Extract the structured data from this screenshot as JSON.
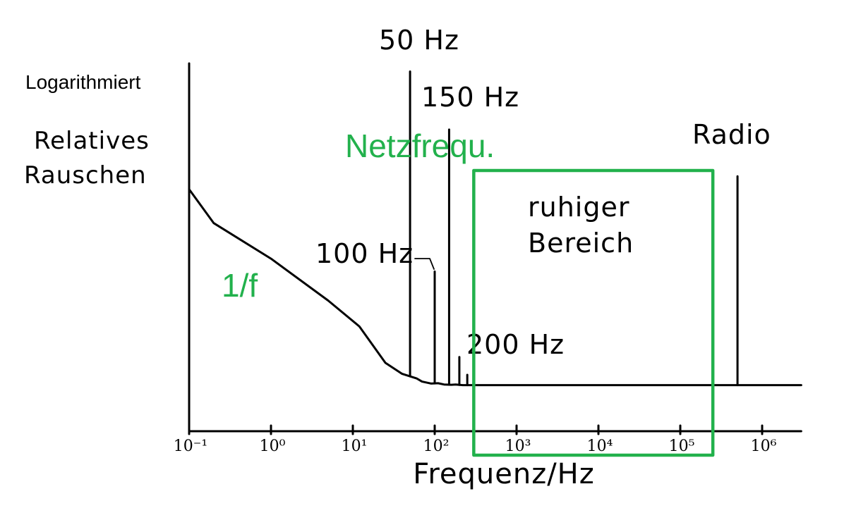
{
  "colors": {
    "ink": "#000000",
    "accent": "#22b14c",
    "background": "#ffffff"
  },
  "chart_data": {
    "type": "line",
    "title": "",
    "xlabel": "Frequenz/Hz",
    "ylabel": {
      "scale_note": "Logarithmiert",
      "lines": [
        "Relatives",
        "Rauschen"
      ]
    },
    "x_axis": {
      "scale": "log",
      "range": [
        0.1,
        3000000
      ],
      "ticks": [
        {
          "value": 0.1,
          "label": "10⁻¹"
        },
        {
          "value": 1,
          "label": "10⁰"
        },
        {
          "value": 10,
          "label": "10¹"
        },
        {
          "value": 100,
          "label": "10²"
        },
        {
          "value": 1000,
          "label": "10³"
        },
        {
          "value": 10000,
          "label": "10⁴"
        },
        {
          "value": 100000,
          "label": "10⁵"
        },
        {
          "value": 1000000,
          "label": "10⁶"
        }
      ]
    },
    "y_axis": {
      "scale": "log",
      "range": [
        0,
        10
      ],
      "ticks": []
    },
    "baseline": {
      "name": "",
      "points": [
        {
          "x": 0.1,
          "y": 6.1
        },
        {
          "x": 0.2,
          "y": 5.05
        },
        {
          "x": 1,
          "y": 3.95
        },
        {
          "x": 5,
          "y": 2.65
        },
        {
          "x": 12,
          "y": 1.85
        },
        {
          "x": 25,
          "y": 0.72
        },
        {
          "x": 40,
          "y": 0.38
        },
        {
          "x": 60,
          "y": 0.24
        },
        {
          "x": 70,
          "y": 0.14
        },
        {
          "x": 90,
          "y": 0.08
        },
        {
          "x": 110,
          "y": 0.09
        },
        {
          "x": 130,
          "y": 0.05
        },
        {
          "x": 160,
          "y": 0.04
        },
        {
          "x": 180,
          "y": 0.05
        },
        {
          "x": 220,
          "y": 0.03
        },
        {
          "x": 1000,
          "y": 0.03
        },
        {
          "x": 10000,
          "y": 0.03
        },
        {
          "x": 100000,
          "y": 0.03
        },
        {
          "x": 3000000,
          "y": 0.03
        }
      ]
    },
    "spikes": [
      {
        "x": 50,
        "y": 9.75,
        "label": "50 Hz"
      },
      {
        "x": 100,
        "y": 3.55,
        "label": "100 Hz"
      },
      {
        "x": 150,
        "y": 7.95,
        "label": "150 Hz"
      },
      {
        "x": 200,
        "y": 0.9,
        "label": "200 Hz"
      },
      {
        "x": 250,
        "y": 0.35,
        "label": ""
      },
      {
        "x": 500000,
        "y": 6.5,
        "label": "Radio"
      }
    ],
    "annotations": [
      {
        "text": "ruhiger",
        "region_from": 300,
        "region_to": 250000
      },
      {
        "text": "Bereich",
        "region_from": 300,
        "region_to": 250000
      }
    ],
    "overlays": [
      {
        "text": "1/f",
        "color": "#22b14c"
      },
      {
        "text": "Netzfrequ.",
        "color": "#22b14c"
      }
    ],
    "highlight_region": {
      "x_from": 300,
      "x_to": 250000,
      "y_from": 0,
      "y_to": 6.3,
      "color": "#22b14c"
    },
    "grid": false,
    "legend": "none"
  }
}
